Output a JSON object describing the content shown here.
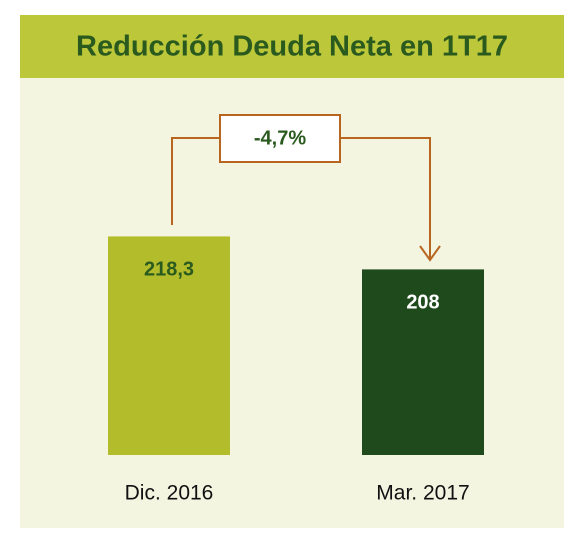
{
  "chart_data": {
    "type": "bar",
    "title": "Reducción Deuda Neta en 1T17",
    "categories": [
      "Dic. 2016",
      "Mar. 2017"
    ],
    "values": [
      218.3,
      208
    ],
    "value_labels": [
      "218,3",
      "208"
    ],
    "colors": [
      "#b3bd2b",
      "#1f4a1c"
    ],
    "annotation": "-4,7%",
    "ylim": [
      150,
      230
    ]
  }
}
